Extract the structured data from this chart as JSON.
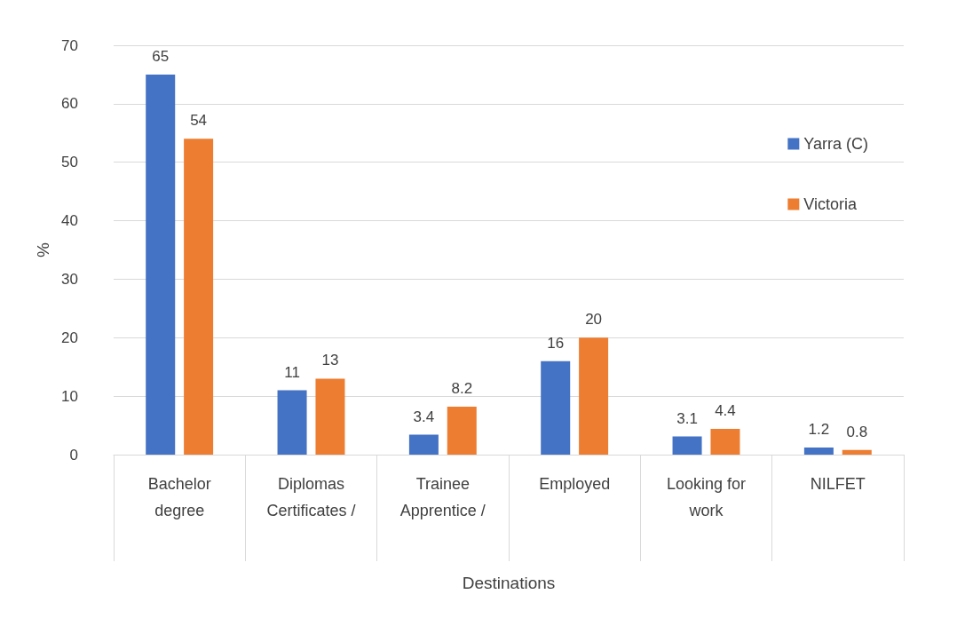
{
  "chart_data": {
    "type": "bar",
    "xlabel": "Destinations",
    "ylabel": "%",
    "categories": [
      "Bachelor\ndegree",
      "Diplomas\nCertificates /",
      "Trainee\nApprentice /",
      "Employed",
      "Looking for\nwork",
      "NILFET"
    ],
    "series": [
      {
        "name": "Yarra (C)",
        "color": "#4472c4",
        "values": [
          65,
          11,
          3.4,
          16,
          3.1,
          1.2
        ]
      },
      {
        "name": "Victoria",
        "color": "#ed7d31",
        "values": [
          54,
          13,
          8.2,
          20,
          4.4,
          0.8
        ]
      }
    ],
    "ylim": [
      0,
      70
    ],
    "yticks": [
      0,
      10,
      20,
      30,
      40,
      50,
      60,
      70
    ],
    "grid": "y",
    "legend": "right",
    "data_labels": true
  }
}
